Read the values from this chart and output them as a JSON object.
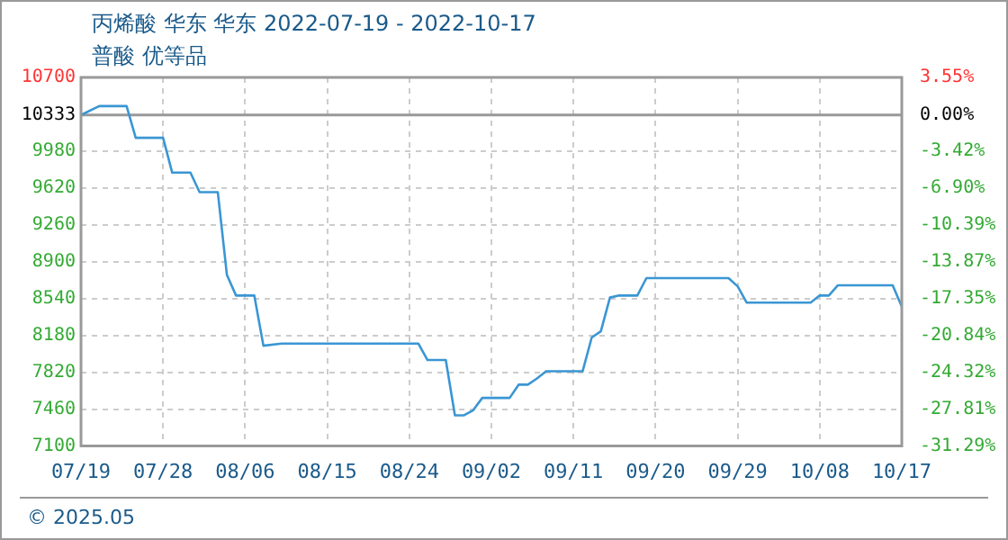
{
  "chart_data": {
    "type": "line",
    "title": "丙烯酸 华东 华东 2022-07-19 - 2022-10-17",
    "subtitle": "普酸 优等品",
    "annotations": [
      "© 2025.05"
    ],
    "x": [
      "2022-07-19",
      "2022-07-21",
      "2022-07-24",
      "2022-07-25",
      "2022-07-28",
      "2022-07-29",
      "2022-07-31",
      "2022-08-01",
      "2022-08-03",
      "2022-08-04",
      "2022-08-05",
      "2022-08-07",
      "2022-08-08",
      "2022-08-10",
      "2022-08-25",
      "2022-08-26",
      "2022-08-28",
      "2022-08-29",
      "2022-08-30",
      "2022-08-31",
      "2022-09-01",
      "2022-09-04",
      "2022-09-05",
      "2022-09-06",
      "2022-09-07",
      "2022-09-08",
      "2022-09-12",
      "2022-09-13",
      "2022-09-14",
      "2022-09-15",
      "2022-09-16",
      "2022-09-18",
      "2022-09-19",
      "2022-09-28",
      "2022-09-29",
      "2022-09-30",
      "2022-10-07",
      "2022-10-08",
      "2022-10-09",
      "2022-10-10",
      "2022-10-16",
      "2022-10-17"
    ],
    "series": [
      {
        "color": "#3a96d4",
        "values": [
          10333,
          10420,
          10420,
          10110,
          10110,
          9770,
          9770,
          9580,
          9580,
          8770,
          8570,
          8570,
          8080,
          8100,
          8100,
          7940,
          7940,
          7400,
          7400,
          7450,
          7570,
          7570,
          7700,
          7700,
          7760,
          7830,
          7830,
          8160,
          8220,
          8550,
          8570,
          8570,
          8740,
          8740,
          8660,
          8500,
          8500,
          8570,
          8570,
          8670,
          8670,
          8460
        ]
      }
    ],
    "xlim": [
      "2022-07-19",
      "2022-10-17"
    ],
    "xticks": [
      {
        "value": "2022-07-19",
        "label": "07/19"
      },
      {
        "value": "2022-07-28",
        "label": "07/28"
      },
      {
        "value": "2022-08-06",
        "label": "08/06"
      },
      {
        "value": "2022-08-15",
        "label": "08/15"
      },
      {
        "value": "2022-08-24",
        "label": "08/24"
      },
      {
        "value": "2022-09-02",
        "label": "09/02"
      },
      {
        "value": "2022-09-11",
        "label": "09/11"
      },
      {
        "value": "2022-09-20",
        "label": "09/20"
      },
      {
        "value": "2022-09-29",
        "label": "09/29"
      },
      {
        "value": "2022-10-08",
        "label": "10/08"
      },
      {
        "value": "2022-10-17",
        "label": "10/17"
      }
    ],
    "ylim": [
      7100,
      10700
    ],
    "yticks": [
      7100,
      7460,
      7820,
      8180,
      8540,
      8900,
      9260,
      9620,
      9980,
      10333,
      10700
    ],
    "y2lim": [
      -31.29,
      3.55
    ],
    "y2ticks": [
      {
        "value": -31.29,
        "label": "-31.29%"
      },
      {
        "value": -27.81,
        "label": "-27.81%"
      },
      {
        "value": -24.32,
        "label": "-24.32%"
      },
      {
        "value": -20.84,
        "label": "-20.84%"
      },
      {
        "value": -17.35,
        "label": "-17.35%"
      },
      {
        "value": -13.87,
        "label": "-13.87%"
      },
      {
        "value": -10.39,
        "label": "-10.39%"
      },
      {
        "value": -6.9,
        "label": "-6.90%"
      },
      {
        "value": -3.42,
        "label": "-3.42%"
      },
      {
        "value": 0,
        "label": "0.00%"
      },
      {
        "value": 3.55,
        "label": "3.55%"
      }
    ],
    "ref_lines": [
      {
        "axis": "y",
        "value": 10333,
        "color": "#999999"
      }
    ],
    "grid": true,
    "legend": false,
    "marker": "none",
    "line_style": "solid"
  }
}
